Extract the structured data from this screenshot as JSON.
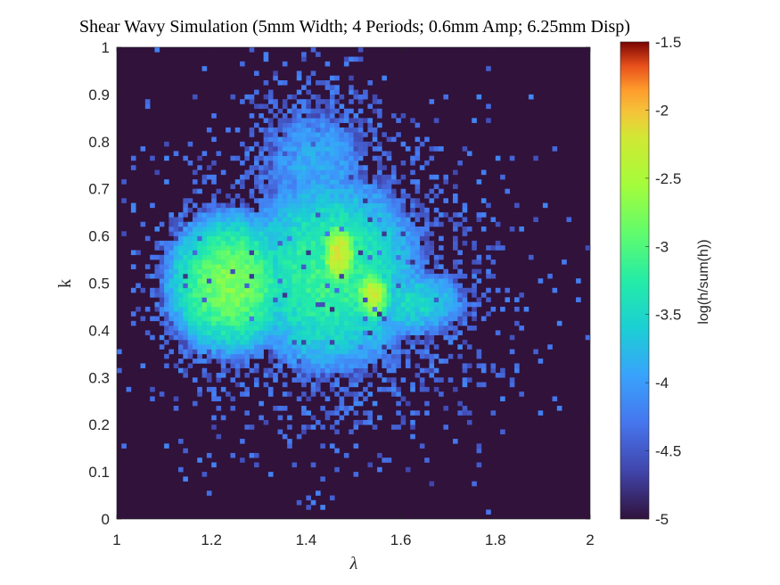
{
  "chart_data": {
    "type": "heatmap",
    "title": "Shear Wavy Simulation (5mm Width; 4 Periods; 0.6mm Amp; 6.25mm Disp)",
    "xlabel": "λ",
    "ylabel": "k",
    "xlim": [
      1,
      2
    ],
    "ylim": [
      0,
      1
    ],
    "x_ticks": [
      "1",
      "1.2",
      "1.4",
      "1.6",
      "1.8",
      "2"
    ],
    "y_ticks": [
      "0",
      "0.1",
      "0.2",
      "0.3",
      "0.4",
      "0.5",
      "0.6",
      "0.7",
      "0.8",
      "0.9",
      "1"
    ],
    "bins": {
      "x": 100,
      "y": 100
    },
    "colorbar": {
      "label": "log(h/sum(h))",
      "range": [
        -5,
        -1.5
      ],
      "ticks": [
        "-5",
        "-4.5",
        "-4",
        "-3.5",
        "-3",
        "-2.5",
        "-2",
        "-1.5"
      ],
      "colormap": "turbo"
    },
    "background_value": -5,
    "density_components": [
      {
        "lambda": 1.24,
        "k": 0.5,
        "sigma_lambda": 0.09,
        "sigma_k": 0.1,
        "peak": -2.75
      },
      {
        "lambda": 1.47,
        "k": 0.56,
        "sigma_lambda": 0.025,
        "sigma_k": 0.045,
        "peak": -2.15
      },
      {
        "lambda": 1.54,
        "k": 0.475,
        "sigma_lambda": 0.025,
        "sigma_k": 0.035,
        "peak": -2.25
      },
      {
        "lambda": 1.45,
        "k": 0.52,
        "sigma_lambda": 0.14,
        "sigma_k": 0.15,
        "peak": -3.1
      },
      {
        "lambda": 1.62,
        "k": 0.46,
        "sigma_lambda": 0.1,
        "sigma_k": 0.06,
        "peak": -3.5
      },
      {
        "lambda": 1.42,
        "k": 0.75,
        "sigma_lambda": 0.12,
        "sigma_k": 0.14,
        "peak": -3.9
      },
      {
        "lambda": 1.45,
        "k": 0.5,
        "sigma_lambda": 0.26,
        "sigma_k": 0.24,
        "peak": -4.3
      }
    ]
  }
}
